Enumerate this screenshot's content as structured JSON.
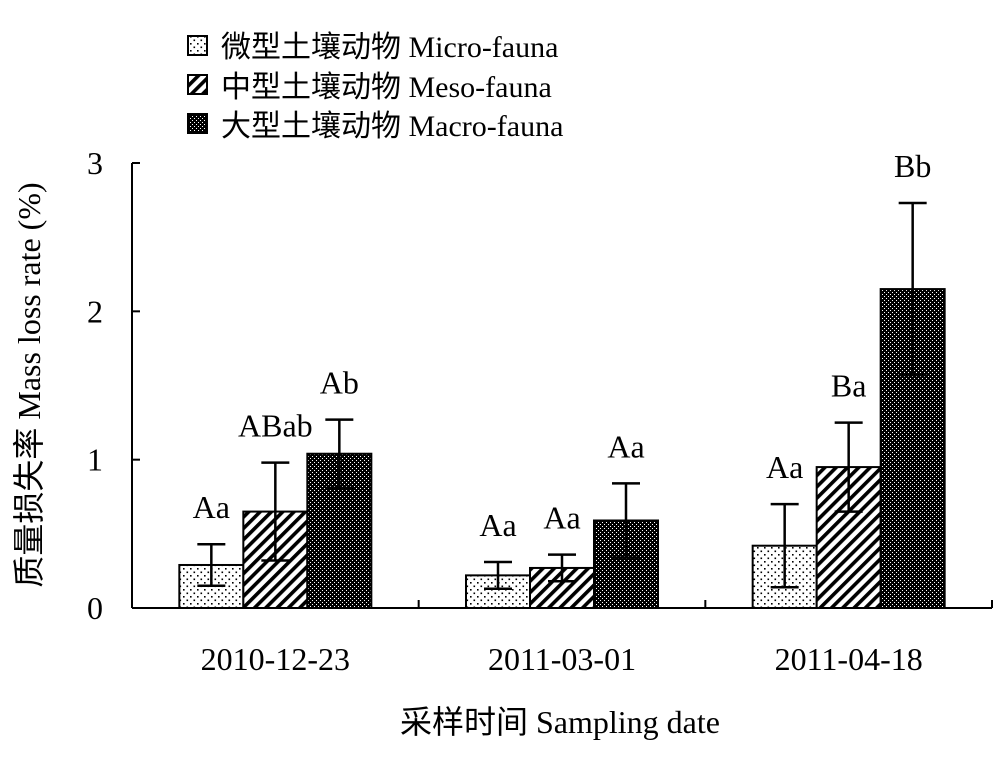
{
  "chart_data": {
    "type": "bar",
    "legend_position": "top-left",
    "grid": false,
    "xlabel": "采样时间 Sampling date",
    "ylabel": "质量损失率 Mass loss rate (%)",
    "ylim": [
      0,
      3
    ],
    "yticks": [
      "0",
      "1",
      "2",
      "3"
    ],
    "categories": [
      "2010-12-23",
      "2011-03-01",
      "2011-04-18"
    ],
    "series": [
      {
        "name": "微型土壤动物 Micro-fauna",
        "pattern": "dots",
        "values": [
          0.29,
          0.22,
          0.42
        ],
        "errors": [
          0.14,
          0.09,
          0.28
        ],
        "labels": [
          "Aa",
          "Aa",
          "Aa"
        ]
      },
      {
        "name": "中型土壤动物 Meso-fauna",
        "pattern": "hatch",
        "values": [
          0.65,
          0.27,
          0.95
        ],
        "errors": [
          0.33,
          0.09,
          0.3
        ],
        "labels": [
          "ABab",
          "Aa",
          "Ba"
        ]
      },
      {
        "name": "大型土壤动物 Macro-fauna",
        "pattern": "dense",
        "values": [
          1.04,
          0.59,
          2.15
        ],
        "errors": [
          0.23,
          0.25,
          0.58
        ],
        "labels": [
          "Ab",
          "Aa",
          "Bb"
        ]
      }
    ]
  }
}
